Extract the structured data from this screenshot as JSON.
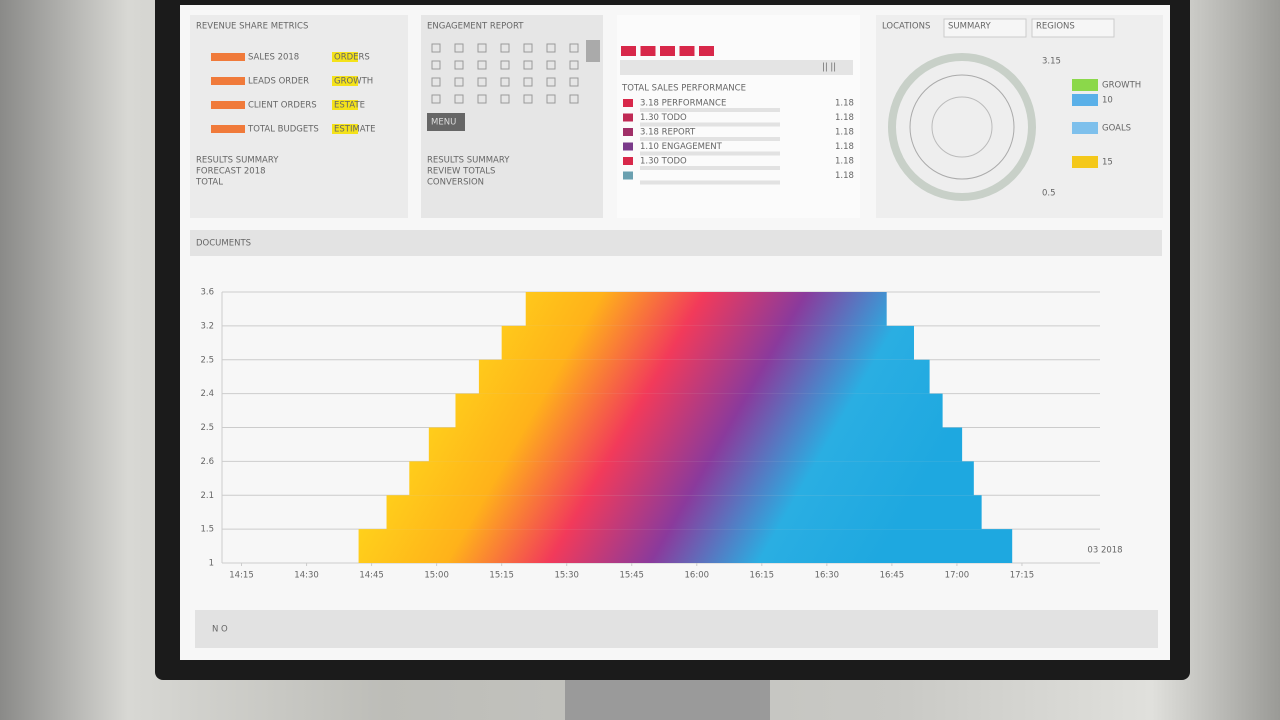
{
  "panels": [
    {
      "title": "REVENUE SHARE METRICS",
      "rows": [
        {
          "label": "SALES 2018",
          "tag": "ORDERS"
        },
        {
          "label": "LEADS ORDER",
          "tag": "GROWTH"
        },
        {
          "label": "CLIENT ORDERS",
          "tag": "ESTATE"
        },
        {
          "label": "TOTAL BUDGETS",
          "tag": "ESTIMATE"
        }
      ],
      "notes": [
        "RESULTS SUMMARY",
        "FORECAST 2018",
        "TOTAL"
      ]
    },
    {
      "title": "ENGAGEMENT REPORT",
      "button": "MENU",
      "notes": [
        "RESULTS SUMMARY",
        "REVIEW TOTALS",
        "CONVERSION"
      ]
    },
    {
      "pager": "|| ||",
      "header": "TOTAL SALES PERFORMANCE",
      "rows": [
        {
          "label": "3.18 PERFORMANCE",
          "value": "1.18"
        },
        {
          "label": "1.30 TODO",
          "value": "1.18"
        },
        {
          "label": "3.18 REPORT",
          "value": "1.18"
        },
        {
          "label": "1.10 ENGAGEMENT",
          "value": "1.18"
        },
        {
          "label": "1.30 TODO",
          "value": "1.18"
        },
        {
          "label": "",
          "value": "1.18"
        }
      ]
    },
    {
      "title": "LOCATIONS",
      "tabs": [
        "SUMMARY",
        "REGIONS"
      ],
      "gauge_labels": [
        "3.15",
        "0.5"
      ],
      "legend": [
        "GROWTH",
        "10",
        "GOALS",
        "15"
      ]
    }
  ],
  "section_title": "DOCUMENTS",
  "chart_data": {
    "type": "range-bar",
    "xlim": [
      -0.3,
      13.2
    ],
    "xticks": [
      {
        "value": 0,
        "label": "14:15"
      },
      {
        "value": 1,
        "label": "14:30"
      },
      {
        "value": 2,
        "label": "14:45"
      },
      {
        "value": 3,
        "label": "15:00"
      },
      {
        "value": 4,
        "label": "15:15"
      },
      {
        "value": 5,
        "label": "15:30"
      },
      {
        "value": 6,
        "label": "15:45"
      },
      {
        "value": 7,
        "label": "16:00"
      },
      {
        "value": 8,
        "label": "16:15"
      },
      {
        "value": 9,
        "label": "16:30"
      },
      {
        "value": 10,
        "label": "16:45"
      },
      {
        "value": 11,
        "label": "17:00"
      },
      {
        "value": 12,
        "label": "17:15"
      }
    ],
    "ylim": [
      0,
      8
    ],
    "yticks": [
      {
        "value": 0,
        "label": "1"
      },
      {
        "value": 1,
        "label": "1.5"
      },
      {
        "value": 2,
        "label": "2.1"
      },
      {
        "value": 3,
        "label": "2.6"
      },
      {
        "value": 4,
        "label": "2.5"
      },
      {
        "value": 5,
        "label": "2.4"
      },
      {
        "value": 6,
        "label": "2.5"
      },
      {
        "value": 7,
        "label": "3.2"
      },
      {
        "value": 8,
        "label": "3.6"
      }
    ],
    "starts": [
      1.8,
      2.23,
      2.58,
      2.88,
      3.29,
      3.65,
      4.0,
      4.37
    ],
    "ends": [
      11.85,
      11.38,
      11.26,
      11.08,
      10.78,
      10.58,
      10.34,
      9.92
    ],
    "annotation": "03 2018",
    "grid": true
  },
  "footer": "N O"
}
